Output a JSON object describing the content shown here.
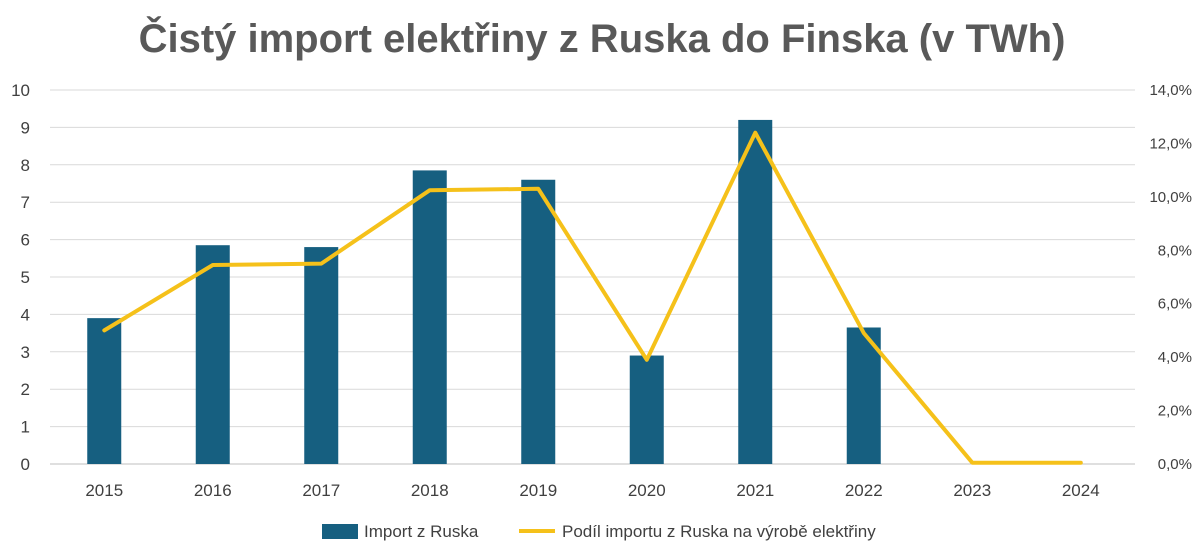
{
  "chart_data": {
    "type": "bar",
    "title": "Čistý import elektřiny z Ruska do Finska (v TWh)",
    "categories": [
      "2015",
      "2016",
      "2017",
      "2018",
      "2019",
      "2020",
      "2021",
      "2022",
      "2023",
      "2024"
    ],
    "series": [
      {
        "name": "Import z Ruska",
        "type": "bar",
        "axis": "left",
        "color": "#165f80",
        "values": [
          3.9,
          5.85,
          5.8,
          7.85,
          7.6,
          2.9,
          9.2,
          3.65,
          0,
          0
        ]
      },
      {
        "name": "Podíl importu z Ruska na výrobě elektřiny",
        "type": "line",
        "axis": "right",
        "color": "#f5c11a",
        "values": [
          5.0,
          7.45,
          7.5,
          10.25,
          10.3,
          3.9,
          12.4,
          4.9,
          0.05,
          0.05
        ]
      }
    ],
    "y_left": {
      "ylim": [
        0,
        10
      ],
      "ticks": [
        "0",
        "1",
        "2",
        "3",
        "4",
        "5",
        "6",
        "7",
        "8",
        "9",
        "10"
      ]
    },
    "y_right": {
      "ylim": [
        0,
        14
      ],
      "ticks": [
        "0,0%",
        "2,0%",
        "4,0%",
        "6,0%",
        "8,0%",
        "10,0%",
        "12,0%",
        "14,0%"
      ]
    },
    "grid": true,
    "legend_position": "bottom"
  }
}
